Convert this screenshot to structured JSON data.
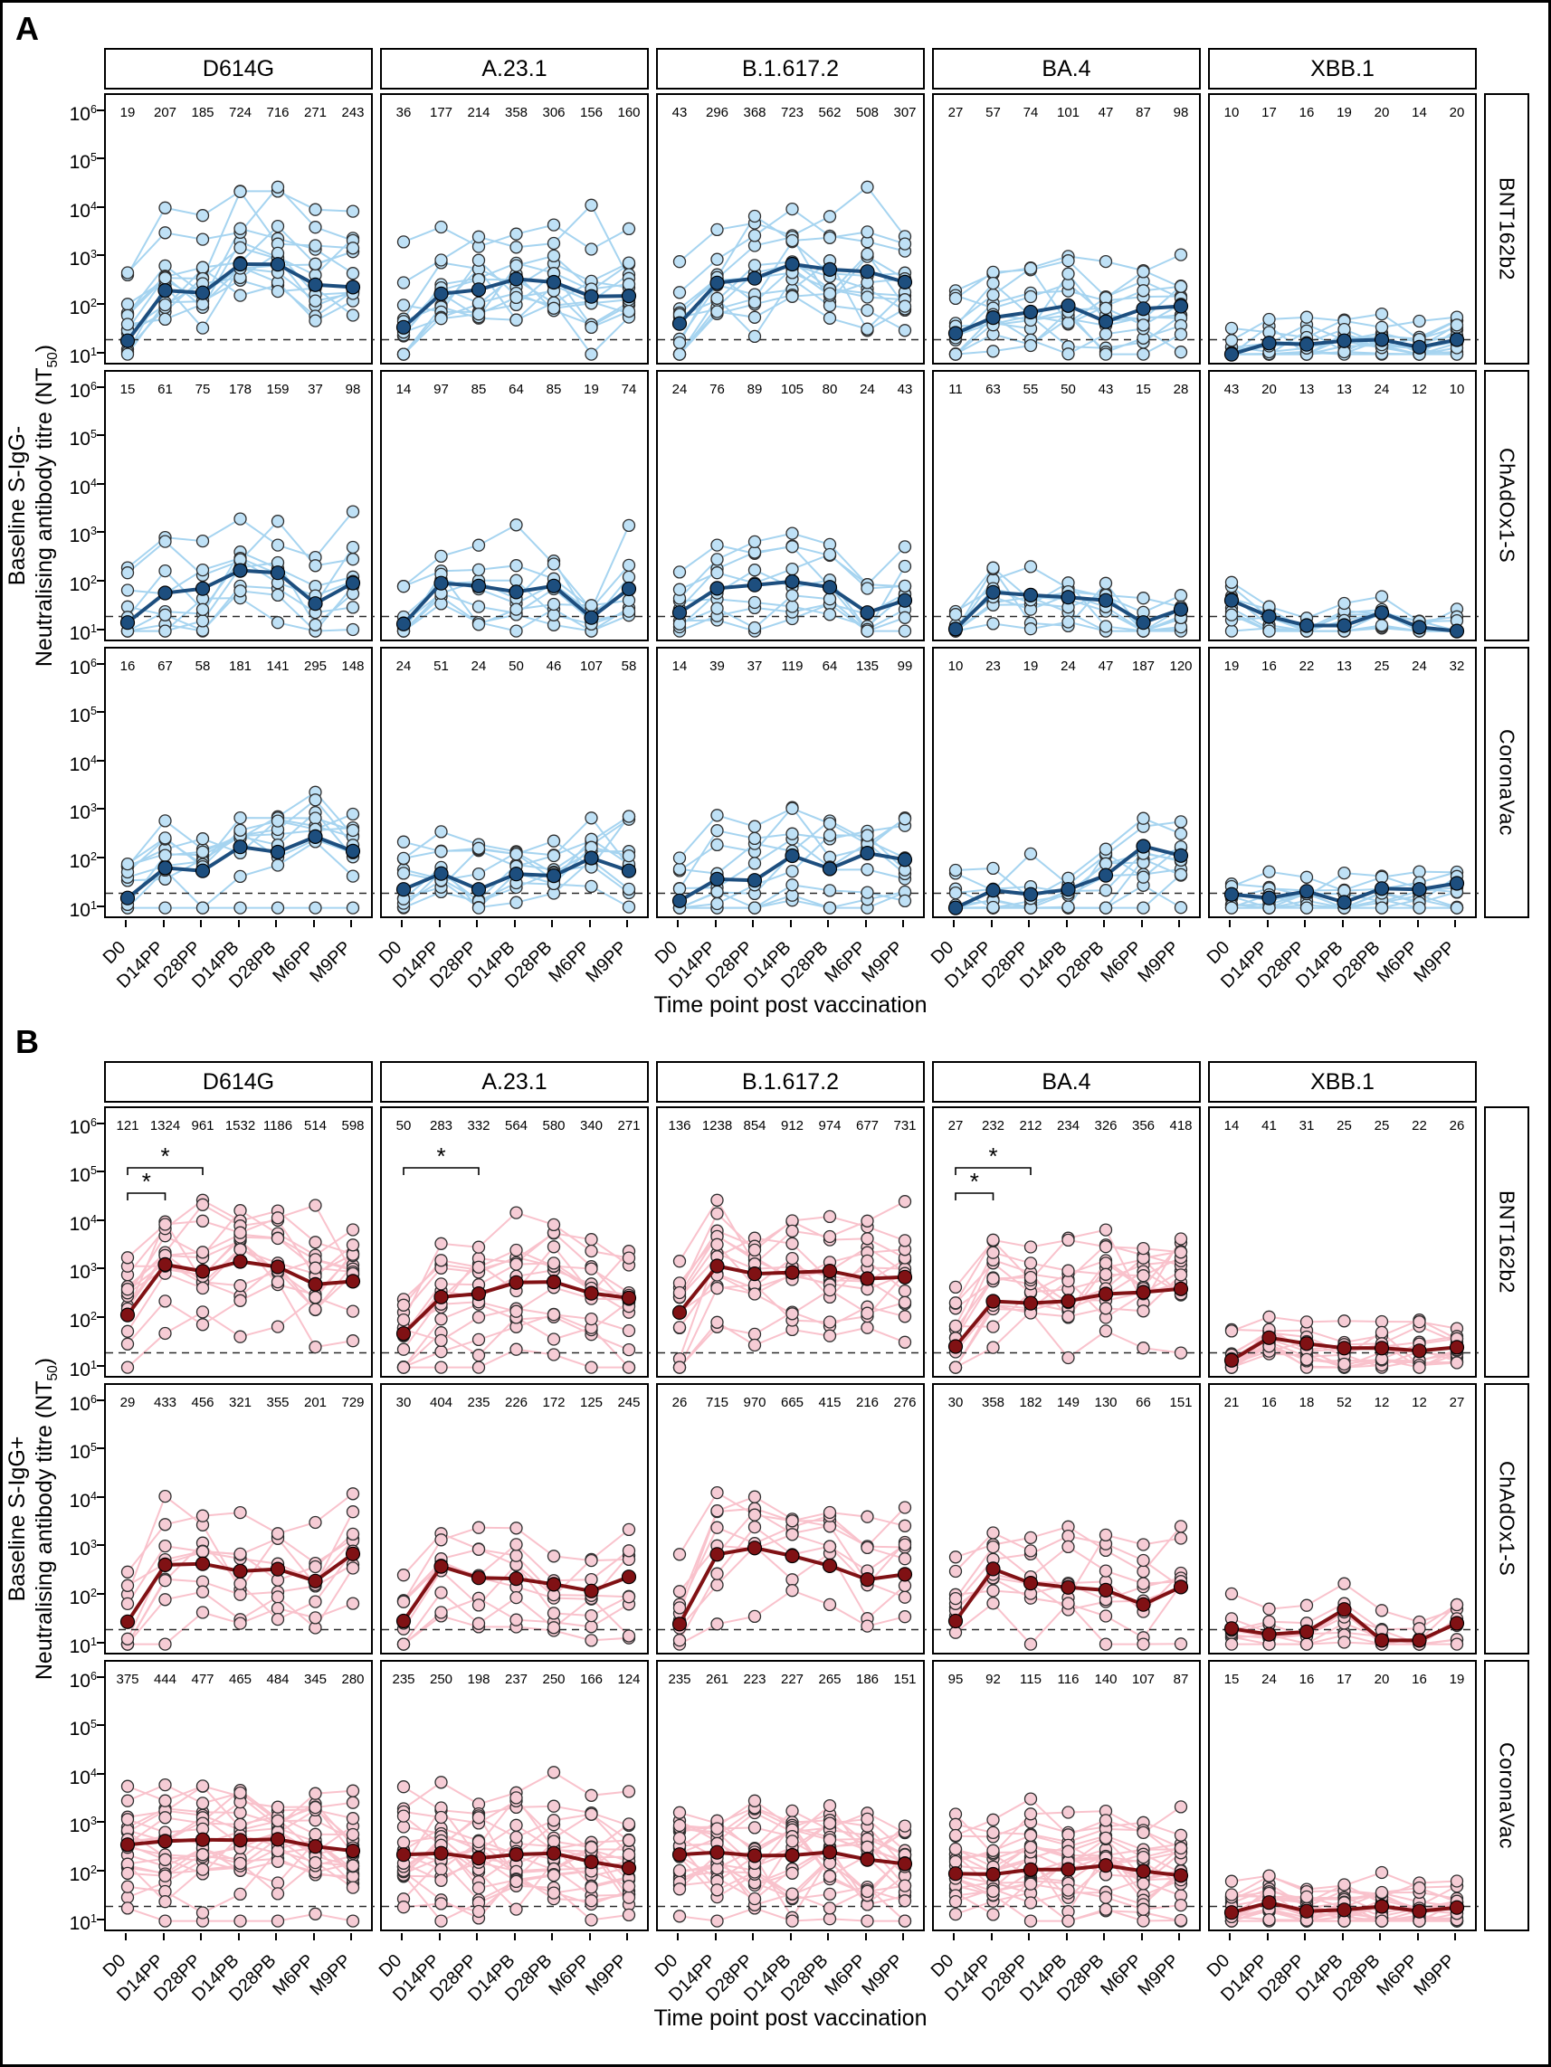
{
  "chart_data": {
    "type": "line",
    "x_title": "Time point post vaccination",
    "x_categories": [
      "D0",
      "D14PP",
      "D28PP",
      "D14PB",
      "D28PB",
      "M6PP",
      "M9PP"
    ],
    "y_scale": "log10",
    "y_ticks_exponents": [
      6,
      5,
      4,
      3,
      2,
      1
    ],
    "y_range_log10": [
      0.75,
      6.35
    ],
    "detection_limit": 20,
    "variants": [
      "D614G",
      "A.23.1",
      "B.1.617.2",
      "BA.4",
      "XBB.1"
    ],
    "vaccines": [
      "BNT162b2",
      "ChAdOx1-S",
      "CoronaVac"
    ],
    "panels": [
      {
        "id": "A",
        "panel_label": "A",
        "y_axis_title": {
          "line1": "Baseline S-IgG-",
          "line2_main": "Neutralising antibody titre (NT",
          "line2_sub": "50",
          "line2_end": ")"
        },
        "colors": {
          "line_light": "#a6d4f0",
          "point_light": "#bfe1f6",
          "dark": "#1d4e7e"
        },
        "n_lines_per_row": [
          13,
          9,
          10
        ],
        "gmt": [
          [
            [
              19,
              207,
              185,
              724,
              716,
              271,
              243
            ],
            [
              36,
              177,
              214,
              358,
              306,
              156,
              160
            ],
            [
              43,
              296,
              368,
              723,
              562,
              508,
              307
            ],
            [
              27,
              57,
              74,
              101,
              47,
              87,
              98
            ],
            [
              10,
              17,
              16,
              19,
              20,
              14,
              20
            ]
          ],
          [
            [
              15,
              61,
              75,
              178,
              159,
              37,
              98
            ],
            [
              14,
              97,
              85,
              64,
              85,
              19,
              74
            ],
            [
              24,
              76,
              89,
              105,
              80,
              24,
              43
            ],
            [
              11,
              63,
              55,
              50,
              43,
              15,
              28
            ],
            [
              43,
              20,
              13,
              13,
              24,
              12,
              10
            ]
          ],
          [
            [
              16,
              67,
              58,
              181,
              141,
              295,
              148
            ],
            [
              24,
              51,
              24,
              50,
              46,
              107,
              58
            ],
            [
              14,
              39,
              37,
              119,
              64,
              135,
              99
            ],
            [
              10,
              23,
              19,
              24,
              47,
              187,
              120
            ],
            [
              19,
              16,
              22,
              13,
              25,
              24,
              32
            ]
          ]
        ],
        "brackets": []
      },
      {
        "id": "B",
        "panel_label": "B",
        "y_axis_title": {
          "line1": "Baseline S-IgG+",
          "line2_main": "Neutralising antibody titre (NT",
          "line2_sub": "50",
          "line2_end": ")"
        },
        "colors": {
          "line_light": "#f9c2cc",
          "point_light": "#f6ccd5",
          "dark": "#801114"
        },
        "n_lines_per_row": [
          14,
          9,
          22
        ],
        "gmt": [
          [
            [
              121,
              1324,
              961,
              1532,
              1186,
              514,
              598
            ],
            [
              50,
              283,
              332,
              564,
              580,
              340,
              271
            ],
            [
              136,
              1238,
              854,
              912,
              974,
              677,
              731
            ],
            [
              27,
              232,
              212,
              234,
              326,
              356,
              418
            ],
            [
              14,
              41,
              31,
              25,
              25,
              22,
              26
            ]
          ],
          [
            [
              29,
              433,
              456,
              321,
              355,
              201,
              729
            ],
            [
              30,
              404,
              235,
              226,
              172,
              125,
              245
            ],
            [
              26,
              715,
              970,
              665,
              415,
              216,
              276
            ],
            [
              30,
              358,
              182,
              149,
              130,
              66,
              151
            ],
            [
              21,
              16,
              18,
              52,
              12,
              12,
              27
            ]
          ],
          [
            [
              375,
              444,
              477,
              465,
              484,
              345,
              280
            ],
            [
              235,
              250,
              198,
              237,
              250,
              166,
              124
            ],
            [
              235,
              261,
              223,
              227,
              265,
              186,
              151
            ],
            [
              95,
              92,
              115,
              116,
              140,
              107,
              87
            ],
            [
              15,
              24,
              16,
              17,
              20,
              16,
              19
            ]
          ]
        ],
        "brackets": [
          {
            "row": 0,
            "col": 0,
            "from": 0,
            "to": 2,
            "level": 0,
            "label": "*"
          },
          {
            "row": 0,
            "col": 0,
            "from": 0,
            "to": 1,
            "level": 1,
            "label": "*"
          },
          {
            "row": 0,
            "col": 1,
            "from": 0,
            "to": 2,
            "level": 0,
            "label": "*"
          },
          {
            "row": 0,
            "col": 3,
            "from": 0,
            "to": 2,
            "level": 0,
            "label": "*"
          },
          {
            "row": 0,
            "col": 3,
            "from": 0,
            "to": 1,
            "level": 1,
            "label": "*"
          }
        ]
      }
    ]
  }
}
